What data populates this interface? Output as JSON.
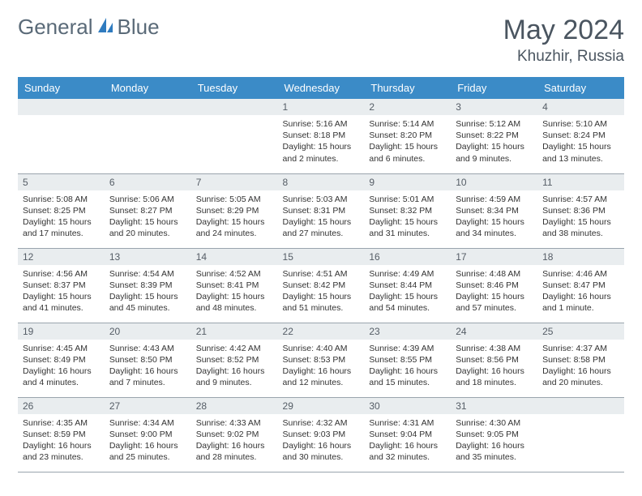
{
  "colors": {
    "header_bg": "#3b8bc7",
    "header_text": "#ffffff",
    "daynum_bg": "#e9edef",
    "daynum_text": "#555d66",
    "body_text": "#333333",
    "title_text": "#4a5560",
    "logo_text": "#5a6a78",
    "row_border": "#9aa4ad",
    "logo_accent": "#2f7bbf"
  },
  "logo": {
    "part1": "General",
    "part2": "Blue"
  },
  "title": "May 2024",
  "location": "Khuzhir, Russia",
  "weekdays": [
    "Sunday",
    "Monday",
    "Tuesday",
    "Wednesday",
    "Thursday",
    "Friday",
    "Saturday"
  ],
  "weeks": [
    [
      null,
      null,
      null,
      {
        "n": "1",
        "sunrise": "5:16 AM",
        "sunset": "8:18 PM",
        "daylight": "15 hours and 2 minutes."
      },
      {
        "n": "2",
        "sunrise": "5:14 AM",
        "sunset": "8:20 PM",
        "daylight": "15 hours and 6 minutes."
      },
      {
        "n": "3",
        "sunrise": "5:12 AM",
        "sunset": "8:22 PM",
        "daylight": "15 hours and 9 minutes."
      },
      {
        "n": "4",
        "sunrise": "5:10 AM",
        "sunset": "8:24 PM",
        "daylight": "15 hours and 13 minutes."
      }
    ],
    [
      {
        "n": "5",
        "sunrise": "5:08 AM",
        "sunset": "8:25 PM",
        "daylight": "15 hours and 17 minutes."
      },
      {
        "n": "6",
        "sunrise": "5:06 AM",
        "sunset": "8:27 PM",
        "daylight": "15 hours and 20 minutes."
      },
      {
        "n": "7",
        "sunrise": "5:05 AM",
        "sunset": "8:29 PM",
        "daylight": "15 hours and 24 minutes."
      },
      {
        "n": "8",
        "sunrise": "5:03 AM",
        "sunset": "8:31 PM",
        "daylight": "15 hours and 27 minutes."
      },
      {
        "n": "9",
        "sunrise": "5:01 AM",
        "sunset": "8:32 PM",
        "daylight": "15 hours and 31 minutes."
      },
      {
        "n": "10",
        "sunrise": "4:59 AM",
        "sunset": "8:34 PM",
        "daylight": "15 hours and 34 minutes."
      },
      {
        "n": "11",
        "sunrise": "4:57 AM",
        "sunset": "8:36 PM",
        "daylight": "15 hours and 38 minutes."
      }
    ],
    [
      {
        "n": "12",
        "sunrise": "4:56 AM",
        "sunset": "8:37 PM",
        "daylight": "15 hours and 41 minutes."
      },
      {
        "n": "13",
        "sunrise": "4:54 AM",
        "sunset": "8:39 PM",
        "daylight": "15 hours and 45 minutes."
      },
      {
        "n": "14",
        "sunrise": "4:52 AM",
        "sunset": "8:41 PM",
        "daylight": "15 hours and 48 minutes."
      },
      {
        "n": "15",
        "sunrise": "4:51 AM",
        "sunset": "8:42 PM",
        "daylight": "15 hours and 51 minutes."
      },
      {
        "n": "16",
        "sunrise": "4:49 AM",
        "sunset": "8:44 PM",
        "daylight": "15 hours and 54 minutes."
      },
      {
        "n": "17",
        "sunrise": "4:48 AM",
        "sunset": "8:46 PM",
        "daylight": "15 hours and 57 minutes."
      },
      {
        "n": "18",
        "sunrise": "4:46 AM",
        "sunset": "8:47 PM",
        "daylight": "16 hours and 1 minute."
      }
    ],
    [
      {
        "n": "19",
        "sunrise": "4:45 AM",
        "sunset": "8:49 PM",
        "daylight": "16 hours and 4 minutes."
      },
      {
        "n": "20",
        "sunrise": "4:43 AM",
        "sunset": "8:50 PM",
        "daylight": "16 hours and 7 minutes."
      },
      {
        "n": "21",
        "sunrise": "4:42 AM",
        "sunset": "8:52 PM",
        "daylight": "16 hours and 9 minutes."
      },
      {
        "n": "22",
        "sunrise": "4:40 AM",
        "sunset": "8:53 PM",
        "daylight": "16 hours and 12 minutes."
      },
      {
        "n": "23",
        "sunrise": "4:39 AM",
        "sunset": "8:55 PM",
        "daylight": "16 hours and 15 minutes."
      },
      {
        "n": "24",
        "sunrise": "4:38 AM",
        "sunset": "8:56 PM",
        "daylight": "16 hours and 18 minutes."
      },
      {
        "n": "25",
        "sunrise": "4:37 AM",
        "sunset": "8:58 PM",
        "daylight": "16 hours and 20 minutes."
      }
    ],
    [
      {
        "n": "26",
        "sunrise": "4:35 AM",
        "sunset": "8:59 PM",
        "daylight": "16 hours and 23 minutes."
      },
      {
        "n": "27",
        "sunrise": "4:34 AM",
        "sunset": "9:00 PM",
        "daylight": "16 hours and 25 minutes."
      },
      {
        "n": "28",
        "sunrise": "4:33 AM",
        "sunset": "9:02 PM",
        "daylight": "16 hours and 28 minutes."
      },
      {
        "n": "29",
        "sunrise": "4:32 AM",
        "sunset": "9:03 PM",
        "daylight": "16 hours and 30 minutes."
      },
      {
        "n": "30",
        "sunrise": "4:31 AM",
        "sunset": "9:04 PM",
        "daylight": "16 hours and 32 minutes."
      },
      {
        "n": "31",
        "sunrise": "4:30 AM",
        "sunset": "9:05 PM",
        "daylight": "16 hours and 35 minutes."
      },
      null
    ]
  ],
  "labels": {
    "sunrise": "Sunrise:",
    "sunset": "Sunset:",
    "daylight": "Daylight:"
  }
}
